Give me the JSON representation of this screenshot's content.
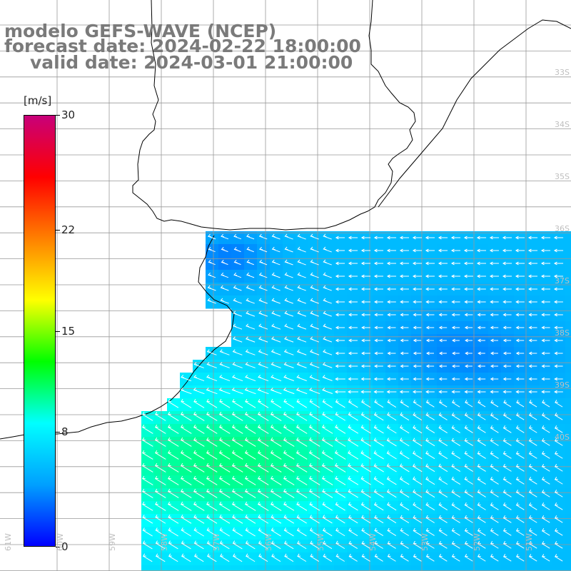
{
  "header": {
    "model_line": "modelo GEFS-WAVE (NCEP)",
    "forecast_line": "forecast date: 2024-02-22 18:00:00",
    "valid_line": "valid date: 2024-03-01 21:00:00"
  },
  "colorbar": {
    "unit": "[m/s]",
    "ticks": [
      {
        "label": "30",
        "value": 30
      },
      {
        "label": "22",
        "value": 22
      },
      {
        "label": "15",
        "value": 15
      },
      {
        "label": "8",
        "value": 8
      },
      {
        "label": "0",
        "value": 0
      }
    ],
    "range": [
      0,
      30
    ],
    "colors": [
      "#0000ff",
      "#00a0ff",
      "#00ffff",
      "#00ff00",
      "#ffff00",
      "#ff8000",
      "#ff0000",
      "#c8007a"
    ]
  },
  "map": {
    "background_color": "#ffffff",
    "coast_color": "#000000",
    "grid_color": "#999999",
    "arrow_color": "#ffffff",
    "lat_labels": [
      "33S",
      "34S",
      "35S",
      "36S",
      "37S",
      "38S",
      "39S",
      "40S"
    ],
    "lon_labels": [
      "61W",
      "60W",
      "59W",
      "58W",
      "57W",
      "56W",
      "55W",
      "54W",
      "53W",
      "52W",
      "51W"
    ]
  }
}
